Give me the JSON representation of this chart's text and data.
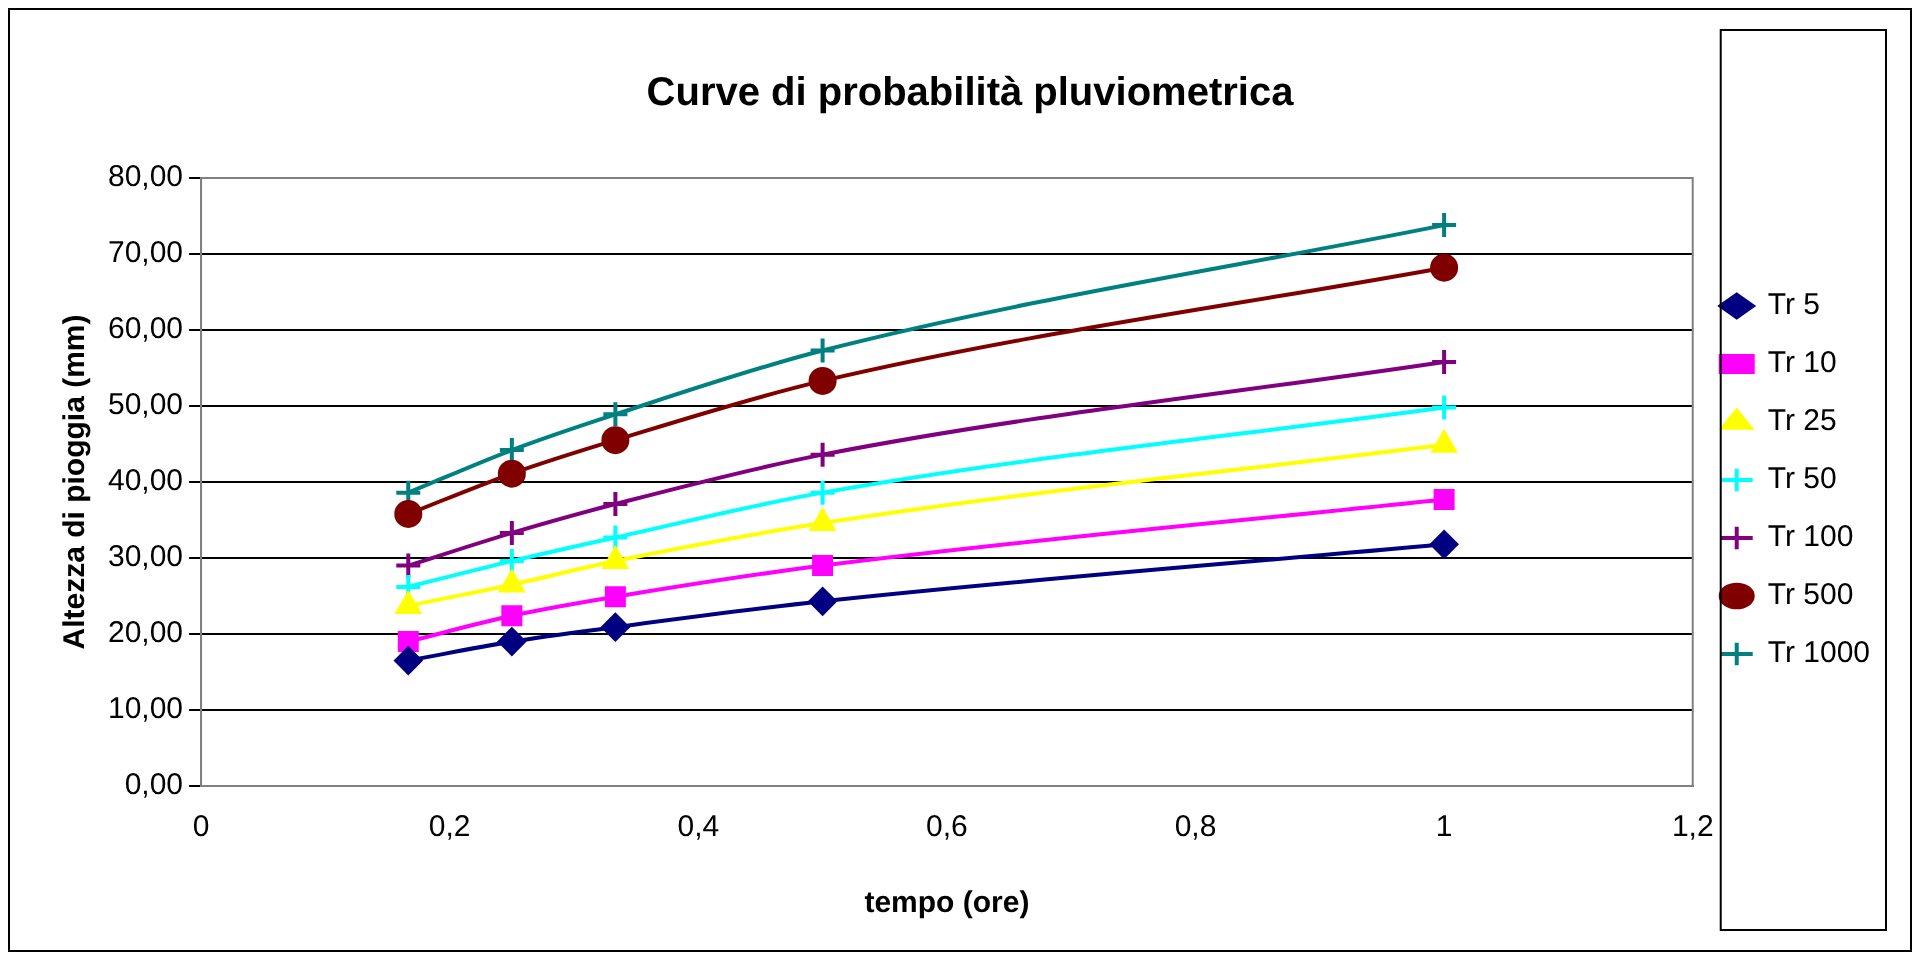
{
  "chart_data": {
    "type": "line",
    "title": "Curve di probabilità pluviometrica",
    "xlabel": "tempo (ore)",
    "ylabel": "Altezza di pioggia (mm)",
    "x": [
      0.1667,
      0.25,
      0.3333,
      0.5,
      1
    ],
    "series": [
      {
        "name": "Tr 5",
        "color": "#000080",
        "marker": "diamond",
        "values": [
          16.5,
          19.0,
          20.9,
          24.3,
          31.8
        ]
      },
      {
        "name": "Tr 10",
        "color": "#ff00ff",
        "marker": "square",
        "values": [
          19.0,
          22.4,
          24.9,
          29.0,
          37.7
        ]
      },
      {
        "name": "Tr 25",
        "color": "#ffff00",
        "marker": "triangle",
        "values": [
          23.7,
          26.5,
          29.6,
          34.6,
          44.9
        ]
      },
      {
        "name": "Tr 50",
        "color": "#00ffff",
        "marker": "cross",
        "values": [
          26.2,
          29.6,
          32.7,
          38.6,
          49.8
        ]
      },
      {
        "name": "Tr 100",
        "color": "#800080",
        "marker": "cross",
        "values": [
          29.0,
          33.3,
          37.1,
          43.6,
          55.8
        ]
      },
      {
        "name": "Tr 500",
        "color": "#800000",
        "marker": "circle",
        "values": [
          35.8,
          41.1,
          45.5,
          53.3,
          68.2
        ]
      },
      {
        "name": "Tr 1000",
        "color": "#008080",
        "marker": "cross",
        "values": [
          38.6,
          44.2,
          48.9,
          57.3,
          73.8
        ]
      }
    ],
    "xlim": [
      0,
      1.2
    ],
    "xticks": [
      0,
      {
        "value": 0.2,
        "label": "0,2"
      },
      {
        "value": 0.4,
        "label": "0,4"
      },
      {
        "value": 0.6,
        "label": "0,6"
      },
      {
        "value": 0.8,
        "label": "0,8"
      },
      1,
      {
        "value": 1.2,
        "label": "1,2"
      }
    ],
    "ylim": [
      0,
      80
    ],
    "yticks": [
      {
        "value": 0,
        "label": "0,00"
      },
      {
        "value": 10,
        "label": "10,00"
      },
      {
        "value": 20,
        "label": "20,00"
      },
      {
        "value": 30,
        "label": "30,00"
      },
      {
        "value": 40,
        "label": "40,00"
      },
      {
        "value": 50,
        "label": "50,00"
      },
      {
        "value": 60,
        "label": "60,00"
      },
      {
        "value": 70,
        "label": "70,00"
      },
      {
        "value": 80,
        "label": "80,00"
      }
    ],
    "grid": "y",
    "legend": "right",
    "line_style": "solid"
  }
}
